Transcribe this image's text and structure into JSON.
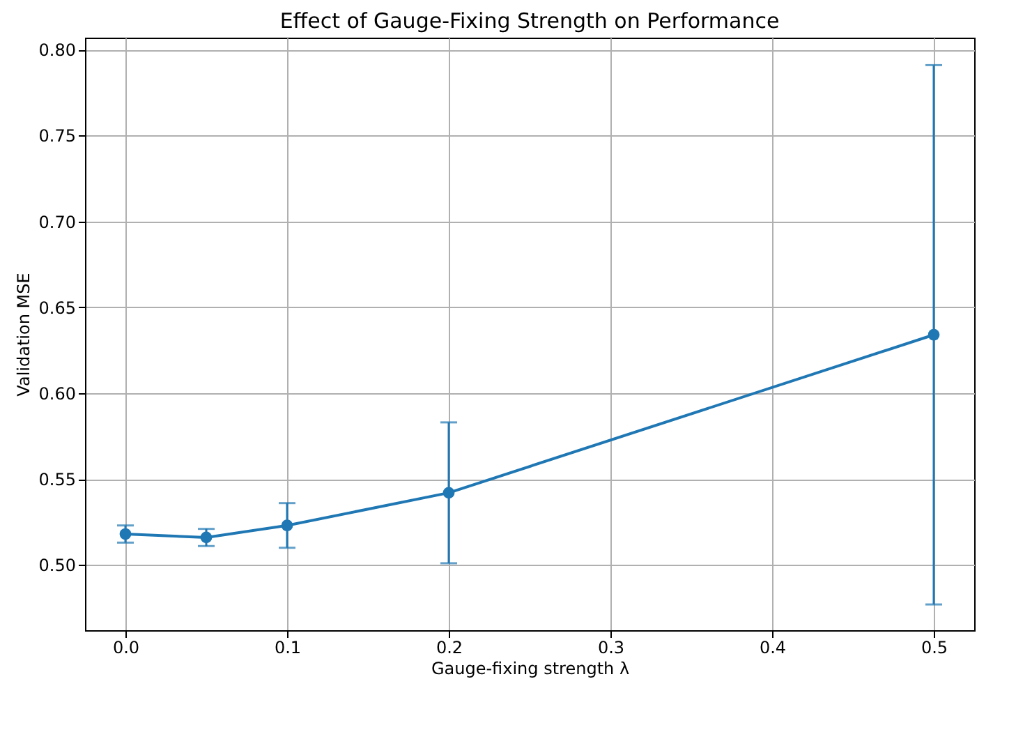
{
  "chart_data": {
    "type": "line",
    "title": "Effect of Gauge-Fixing Strength on Performance",
    "xlabel": "Gauge-fixing strength λ",
    "ylabel": "Validation MSE",
    "x": [
      0.0,
      0.05,
      0.1,
      0.2,
      0.5
    ],
    "series": [
      {
        "color": "#1f77b4",
        "values": [
          0.518,
          0.516,
          0.523,
          0.542,
          0.634
        ],
        "errors": [
          0.005,
          0.005,
          0.013,
          0.041,
          0.157
        ]
      }
    ],
    "xlim": [
      -0.025,
      0.525
    ],
    "xticks": [
      {
        "value": 0,
        "label": "0.0"
      },
      {
        "value": 0.1,
        "label": "0.1"
      },
      {
        "value": 0.2,
        "label": "0.2"
      },
      {
        "value": 0.3,
        "label": "0.3"
      },
      {
        "value": 0.4,
        "label": "0.4"
      },
      {
        "value": 0.5,
        "label": "0.5"
      }
    ],
    "ylim": [
      0.462,
      0.807
    ],
    "yticks": [
      {
        "value": 0.5,
        "label": "0.50"
      },
      {
        "value": 0.55,
        "label": "0.55"
      },
      {
        "value": 0.6,
        "label": "0.60"
      },
      {
        "value": 0.65,
        "label": "0.65"
      },
      {
        "value": 0.7,
        "label": "0.70"
      },
      {
        "value": 0.75,
        "label": "0.75"
      },
      {
        "value": 0.8,
        "label": "0.80"
      }
    ],
    "grid": true,
    "marker": "circle",
    "line_style": "solid"
  }
}
